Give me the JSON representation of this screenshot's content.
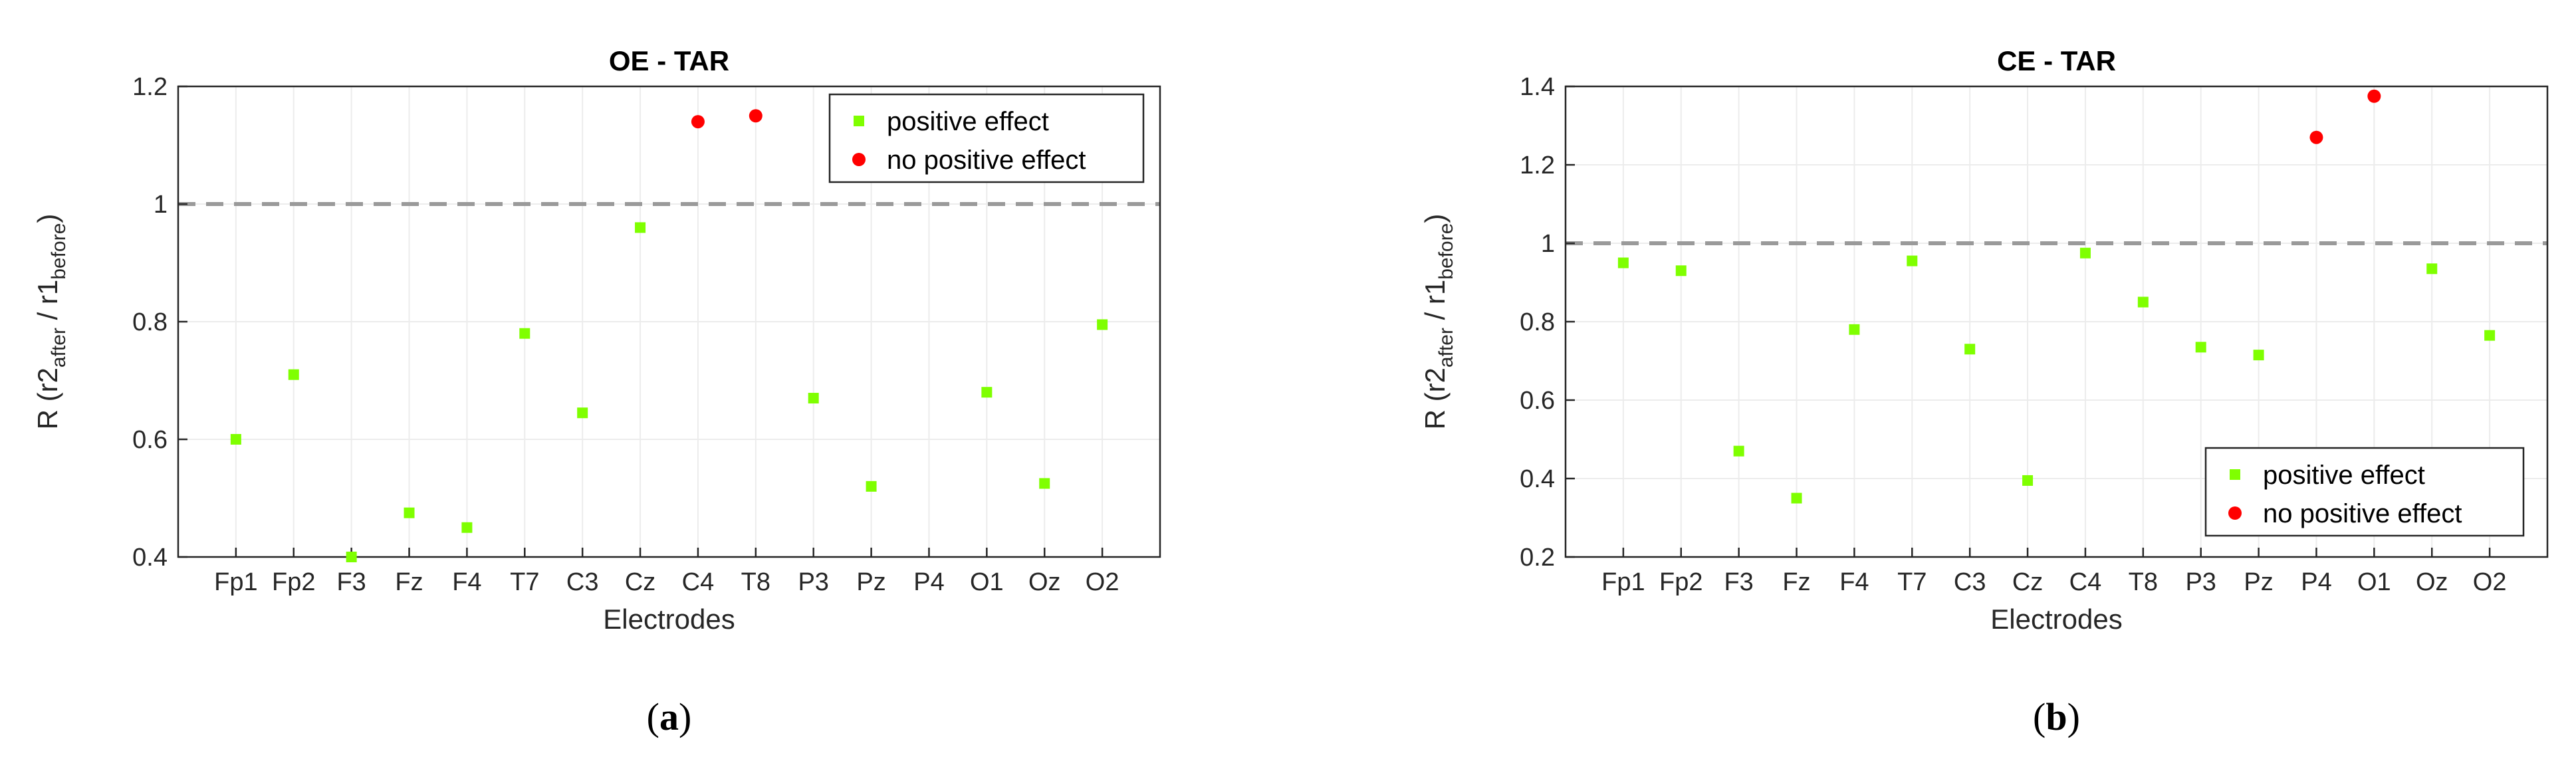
{
  "colors": {
    "positive": "#7fff00",
    "no_positive": "#ff0000",
    "reference_line": "#9a9a9a",
    "grid": "#ececec",
    "axis": "#262626"
  },
  "chart_data": [
    {
      "type": "scatter",
      "title": "OE - TAR",
      "xlabel": "Electrodes",
      "ylabel_parts": [
        "R (r2",
        "after",
        " / r1",
        "before",
        ")"
      ],
      "categories": [
        "Fp1",
        "Fp2",
        "F3",
        "Fz",
        "F4",
        "T7",
        "C3",
        "Cz",
        "C4",
        "T8",
        "P3",
        "Pz",
        "P4",
        "O1",
        "Oz",
        "O2"
      ],
      "ylim": [
        0.4,
        1.2
      ],
      "yticks": [
        0.4,
        0.6,
        0.8,
        1,
        1.2
      ],
      "ytick_labels": [
        "0.4",
        "0.6",
        "0.8",
        "1",
        "1.2"
      ],
      "reference_y": 1,
      "grid": true,
      "legend_position": "top-right",
      "series": [
        {
          "name": "positive effect",
          "marker": "square",
          "points": [
            {
              "x": "Fp1",
              "y": 0.6
            },
            {
              "x": "Fp2",
              "y": 0.71
            },
            {
              "x": "F3",
              "y": 0.4
            },
            {
              "x": "Fz",
              "y": 0.475
            },
            {
              "x": "F4",
              "y": 0.45
            },
            {
              "x": "T7",
              "y": 0.78
            },
            {
              "x": "C3",
              "y": 0.645
            },
            {
              "x": "Cz",
              "y": 0.96
            },
            {
              "x": "P3",
              "y": 0.67
            },
            {
              "x": "Pz",
              "y": 0.52
            },
            {
              "x": "O1",
              "y": 0.68
            },
            {
              "x": "Oz",
              "y": 0.525
            },
            {
              "x": "O2",
              "y": 0.795
            }
          ]
        },
        {
          "name": "no positive effect",
          "marker": "circle",
          "points": [
            {
              "x": "C4",
              "y": 1.14
            },
            {
              "x": "T8",
              "y": 1.15
            }
          ]
        }
      ],
      "caption": "a"
    },
    {
      "type": "scatter",
      "title": "CE - TAR",
      "xlabel": "Electrodes",
      "ylabel_parts": [
        "R (r2",
        "after",
        " / r1",
        "before",
        ")"
      ],
      "categories": [
        "Fp1",
        "Fp2",
        "F3",
        "Fz",
        "F4",
        "T7",
        "C3",
        "Cz",
        "C4",
        "T8",
        "P3",
        "Pz",
        "P4",
        "O1",
        "Oz",
        "O2"
      ],
      "ylim": [
        0.2,
        1.4
      ],
      "yticks": [
        0.2,
        0.4,
        0.6,
        0.8,
        1,
        1.2,
        1.4
      ],
      "ytick_labels": [
        "0.2",
        "0.4",
        "0.6",
        "0.8",
        "1",
        "1.2",
        "1.4"
      ],
      "reference_y": 1,
      "grid": true,
      "legend_position": "bottom-right",
      "series": [
        {
          "name": "positive effect",
          "marker": "square",
          "points": [
            {
              "x": "Fp1",
              "y": 0.95
            },
            {
              "x": "Fp2",
              "y": 0.93
            },
            {
              "x": "F3",
              "y": 0.47
            },
            {
              "x": "Fz",
              "y": 0.35
            },
            {
              "x": "F4",
              "y": 0.78
            },
            {
              "x": "T7",
              "y": 0.955
            },
            {
              "x": "C3",
              "y": 0.73
            },
            {
              "x": "Cz",
              "y": 0.395
            },
            {
              "x": "C4",
              "y": 0.975
            },
            {
              "x": "T8",
              "y": 0.85
            },
            {
              "x": "P3",
              "y": 0.735
            },
            {
              "x": "Pz",
              "y": 0.715
            },
            {
              "x": "Oz",
              "y": 0.935
            },
            {
              "x": "O2",
              "y": 0.765
            }
          ]
        },
        {
          "name": "no positive effect",
          "marker": "circle",
          "points": [
            {
              "x": "P4",
              "y": 1.27
            },
            {
              "x": "O1",
              "y": 1.375
            }
          ]
        }
      ],
      "caption": "b"
    }
  ]
}
